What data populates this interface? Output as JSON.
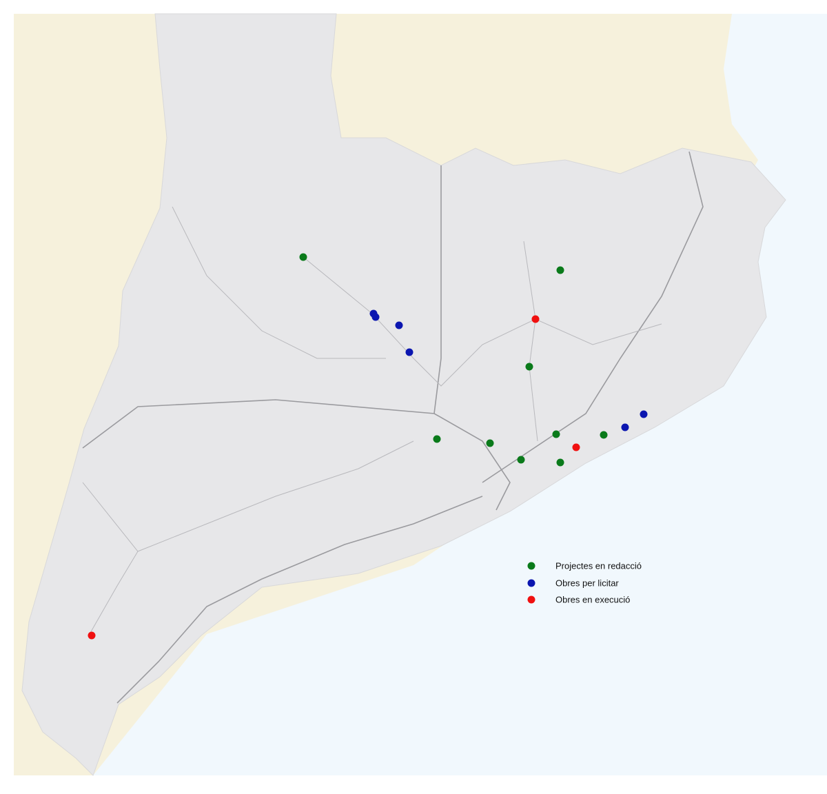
{
  "legend": {
    "items": [
      {
        "label": "Projectes en redacció"
      },
      {
        "label": "Obres per licitar"
      },
      {
        "label": "Obres en execució"
      }
    ]
  }
}
